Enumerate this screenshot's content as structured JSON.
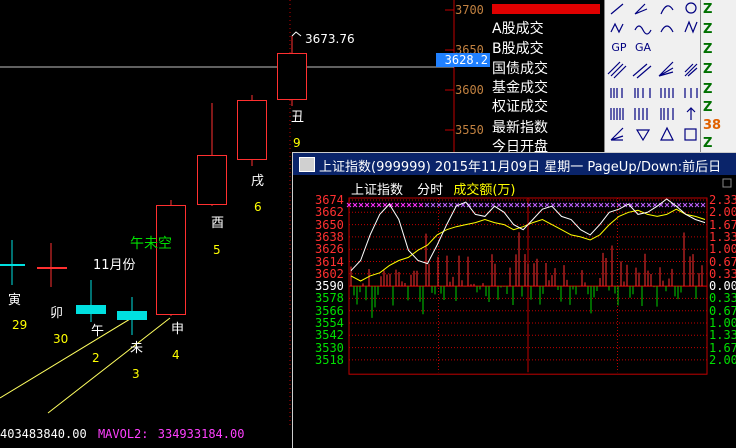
{
  "kline": {
    "ann_high": "3673.76",
    "ann_month": "11月份",
    "ann_gap": "午未空",
    "days": [
      {
        "name": "寅",
        "num": "29"
      },
      {
        "name": "卯",
        "num": "30"
      },
      {
        "name": "午",
        "num": "2"
      },
      {
        "name": "未",
        "num": "3"
      },
      {
        "name": "申",
        "num": "4"
      },
      {
        "name": "酉",
        "num": "5"
      },
      {
        "name": "戌",
        "num": "6"
      },
      {
        "name": "丑",
        "num": "9"
      }
    ],
    "price_axis": [
      "3700",
      "3650",
      "3600",
      "3550"
    ],
    "highlight_price": "3628.2"
  },
  "info_panel": {
    "rows": [
      "A股成交",
      "B股成交",
      "国债成交",
      "基金成交",
      "权证成交",
      "最新指数",
      "今日开盘"
    ]
  },
  "right_strip": {
    "labels": [
      "Z",
      "Z",
      "Z",
      "Z",
      "Z",
      "Z",
      "Z",
      "38",
      "Z"
    ]
  },
  "toolbar": {
    "icons": [
      "line-tool-icon",
      "fan-tool-icon",
      "arc-tool-icon",
      "circle-tool-icon",
      "gp-tool-icon",
      "ga-tool-icon",
      "parallel-tool-icon",
      "channel-tool-icon",
      "cycle-tool-icon",
      "fib-tool-icon",
      "arrow-down-icon",
      "square-tool-icon"
    ],
    "labels": [
      "GP",
      "GA"
    ]
  },
  "popup": {
    "title": "上证指数(999999) 2015年11月09日 星期一 PageUp/Down:前后日",
    "sub_index": "上证指数",
    "sub_mode": "分时",
    "sub_metric": "成交额(万)",
    "left_axis": [
      "3674",
      "3662",
      "3650",
      "3638",
      "3626",
      "3614",
      "3602",
      "3590",
      "3578",
      "3566",
      "3554",
      "3542",
      "3530",
      "3518"
    ],
    "right_axis": [
      "2.33%",
      "2.00%",
      "1.67%",
      "1.33%",
      "1.00%",
      "0.67%",
      "0.33%",
      "0.00%",
      "0.33%",
      "0.67%",
      "1.00%",
      "1.33%",
      "1.67%",
      "2.00%"
    ]
  },
  "statusbar": {
    "vol_value": "403483840.00",
    "mavol2_label": "MAVOL2:",
    "mavol2_value": "334933184.00"
  },
  "colors": {
    "up": "#ff3030",
    "down": "#00e0e0",
    "price_line": "#ffffff",
    "avg_line": "#ffff00",
    "title_bar": "#0a246a"
  }
}
